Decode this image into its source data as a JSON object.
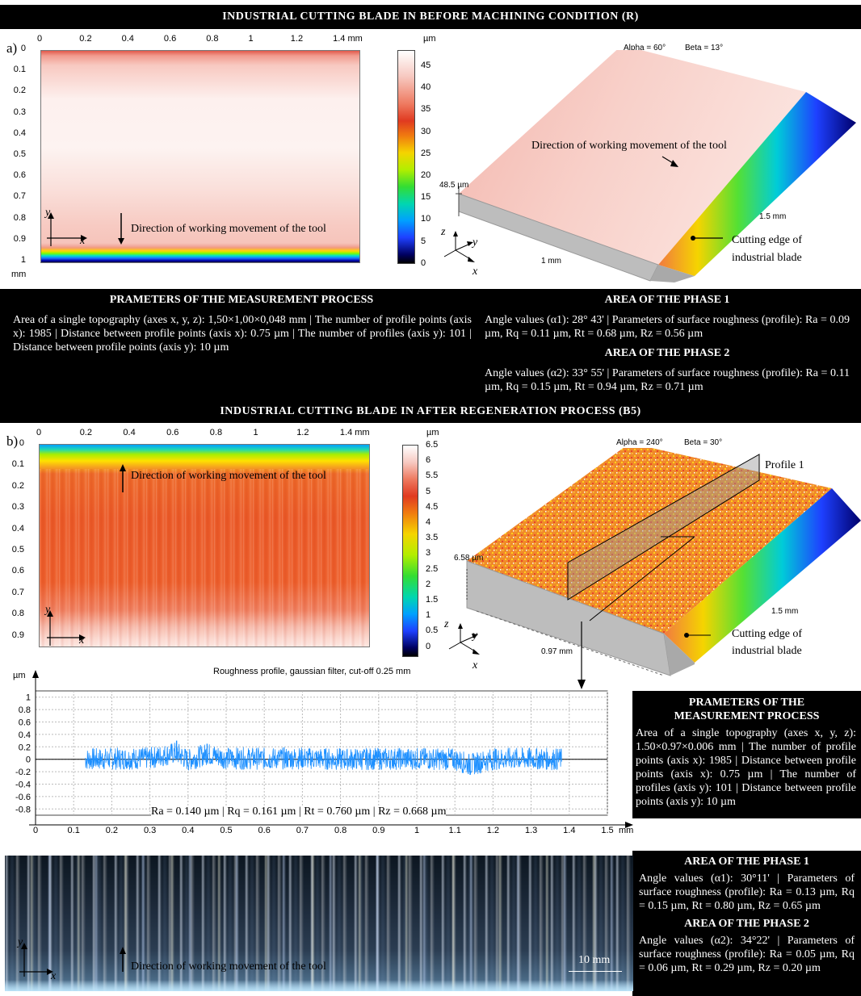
{
  "title_a": "INDUSTRIAL CUTTING BLADE IN BEFORE MACHINING CONDITION (R)",
  "title_b": "INDUSTRIAL CUTTING BLADE IN AFTER REGENERATION PROCESS (B5)",
  "panel_a": {
    "letter": "a)",
    "x_ticks": [
      "0",
      "0.2",
      "0.4",
      "0.6",
      "0.8",
      "1",
      "1.2",
      "1.4 mm"
    ],
    "y_ticks": [
      "0",
      "0.1",
      "0.2",
      "0.3",
      "0.4",
      "0.5",
      "0.6",
      "0.7",
      "0.8",
      "0.9",
      "1"
    ],
    "y_unit": "mm",
    "colorbar_unit": "µm",
    "colorbar_ticks": [
      "45",
      "40",
      "35",
      "30",
      "25",
      "20",
      "15",
      "10",
      "5",
      "0"
    ],
    "direction_label": "Direction of working movement of the tool",
    "iso_alpha": "Alpha = 60°",
    "iso_beta": "Beta = 13°",
    "iso_height": "48.5 µm",
    "iso_len_x": "1 mm",
    "iso_len_y": "1.5 mm",
    "iso_direction_label": "Direction of working movement of the tool",
    "edge_label_1": "Cutting edge of",
    "edge_label_2": "industrial blade"
  },
  "params_a": {
    "heading": "PRAMETERS OF THE MEASUREMENT PROCESS",
    "text": "Area of a single topography (axes x, y, z): 1,50×1,00×0,048 mm | The number of profile points (axis x): 1985 | Distance between profile points (axis x): 0.75 µm | The number of profiles (axis y): 101 | Distance between profile points (axis y): 10 µm",
    "phase1_heading": "AREA OF THE PHASE 1",
    "phase1_text": "Angle values (α1): 28° 43' | Parameters of surface roughness (profile): Ra = 0.09 µm, Rq = 0.11 µm, Rt = 0.68 µm, Rz = 0.56 µm",
    "phase2_heading": "AREA OF THE PHASE 2",
    "phase2_text": "Angle values (α2): 33° 55' | Parameters of surface roughness (profile): Ra = 0.11 µm, Rq = 0.15 µm, Rt = 0.94 µm, Rz = 0.71 µm"
  },
  "panel_b": {
    "letter": "b)",
    "x_ticks": [
      "0",
      "0.2",
      "0.4",
      "0.6",
      "0.8",
      "1",
      "1.2",
      "1.4 mm"
    ],
    "y_ticks": [
      "0",
      "0.1",
      "0.2",
      "0.3",
      "0.4",
      "0.5",
      "0.6",
      "0.7",
      "0.8",
      "0.9"
    ],
    "colorbar_unit": "µm",
    "colorbar_ticks": [
      "6.5",
      "6",
      "5.5",
      "5",
      "4.5",
      "4",
      "3.5",
      "3",
      "2.5",
      "2",
      "1.5",
      "1",
      "0.5",
      "0"
    ],
    "direction_label": "Direction of working movement of the tool",
    "iso_alpha": "Alpha = 240°",
    "iso_beta": "Beta = 30°",
    "iso_height": "6.58 µm",
    "iso_len_x": "0.97 mm",
    "iso_len_y": "1.5 mm",
    "profile_label": "Profile 1",
    "edge_label_1": "Cutting edge of",
    "edge_label_2": "industrial blade"
  },
  "profile_chart": {
    "title": "Roughness profile, gaussian filter, cut-off 0.25 mm",
    "y_unit": "µm",
    "x_unit": "mm",
    "y_ticks": [
      "1",
      "0.8",
      "0.6",
      "0.4",
      "0.2",
      "0",
      "-0.2",
      "-0.4",
      "-0.6",
      "-0.8"
    ],
    "x_ticks": [
      "0",
      "0.1",
      "0.2",
      "0.3",
      "0.4",
      "0.5",
      "0.6",
      "0.7",
      "0.8",
      "0.9",
      "1",
      "1.1",
      "1.2",
      "1.3",
      "1.4",
      "1.5"
    ],
    "roughness_text": "Ra = 0.140 µm | Rq = 0.161 µm | Rt = 0.760 µm | Rz = 0.668 µm",
    "line_color": "#1e90ff"
  },
  "chart_data": {
    "type": "line",
    "title": "Roughness profile, gaussian filter, cut-off 0.25 mm",
    "xlabel": "mm",
    "ylabel": "µm",
    "xlim": [
      0,
      1.5
    ],
    "ylim": [
      -0.9,
      1.1
    ],
    "grid": true,
    "x_range_of_data": [
      0.13,
      1.38
    ],
    "summary": {
      "Ra": 0.14,
      "Rq": 0.161,
      "Rt": 0.76,
      "Rz": 0.668
    },
    "series": [
      {
        "x": [
          0.13,
          0.2,
          0.3,
          0.37,
          0.4,
          0.45,
          0.5,
          0.6,
          0.7,
          0.8,
          0.9,
          1.0,
          1.1,
          1.14,
          1.2,
          1.3,
          1.38
        ],
        "values": [
          0.0,
          0.02,
          0.05,
          0.3,
          -0.05,
          0.25,
          0.05,
          0.03,
          0.05,
          0.0,
          0.02,
          0.03,
          0.0,
          -0.25,
          0.02,
          0.03,
          0.0
        ]
      }
    ]
  },
  "params_b": {
    "heading_1": "PRAMETERS OF THE",
    "heading_2": "MEASUREMENT PROCESS",
    "text": "Area of a single topography (axes x, y, z): 1.50×0.97×0.006 mm | The number of profile points (axis x): 1985 | Distance between profile points (axis x): 0.75 µm | The number of profiles (axis y): 101 | Distance between profile points (axis y): 10 µm",
    "phase1_heading": "AREA OF THE PHASE 1",
    "phase1_text": "Angle values (α1): 30°11' | Parameters of surface roughness (profile): Ra = 0.13 µm, Rq = 0.15 µm, Rt = 0.80 µm, Rz = 0.65 µm",
    "phase2_heading": "AREA OF THE PHASE 2",
    "phase2_text": "Angle values (α2): 34°22' | Parameters of surface roughness (profile): Ra = 0.05 µm, Rq = 0.06 µm, Rt = 0.29 µm, Rz = 0.20 µm"
  },
  "photo": {
    "direction_label": "Direction of working movement of the tool",
    "scale_label": "10 mm"
  },
  "axis_labels": {
    "x": "x",
    "y": "y",
    "z": "z"
  }
}
